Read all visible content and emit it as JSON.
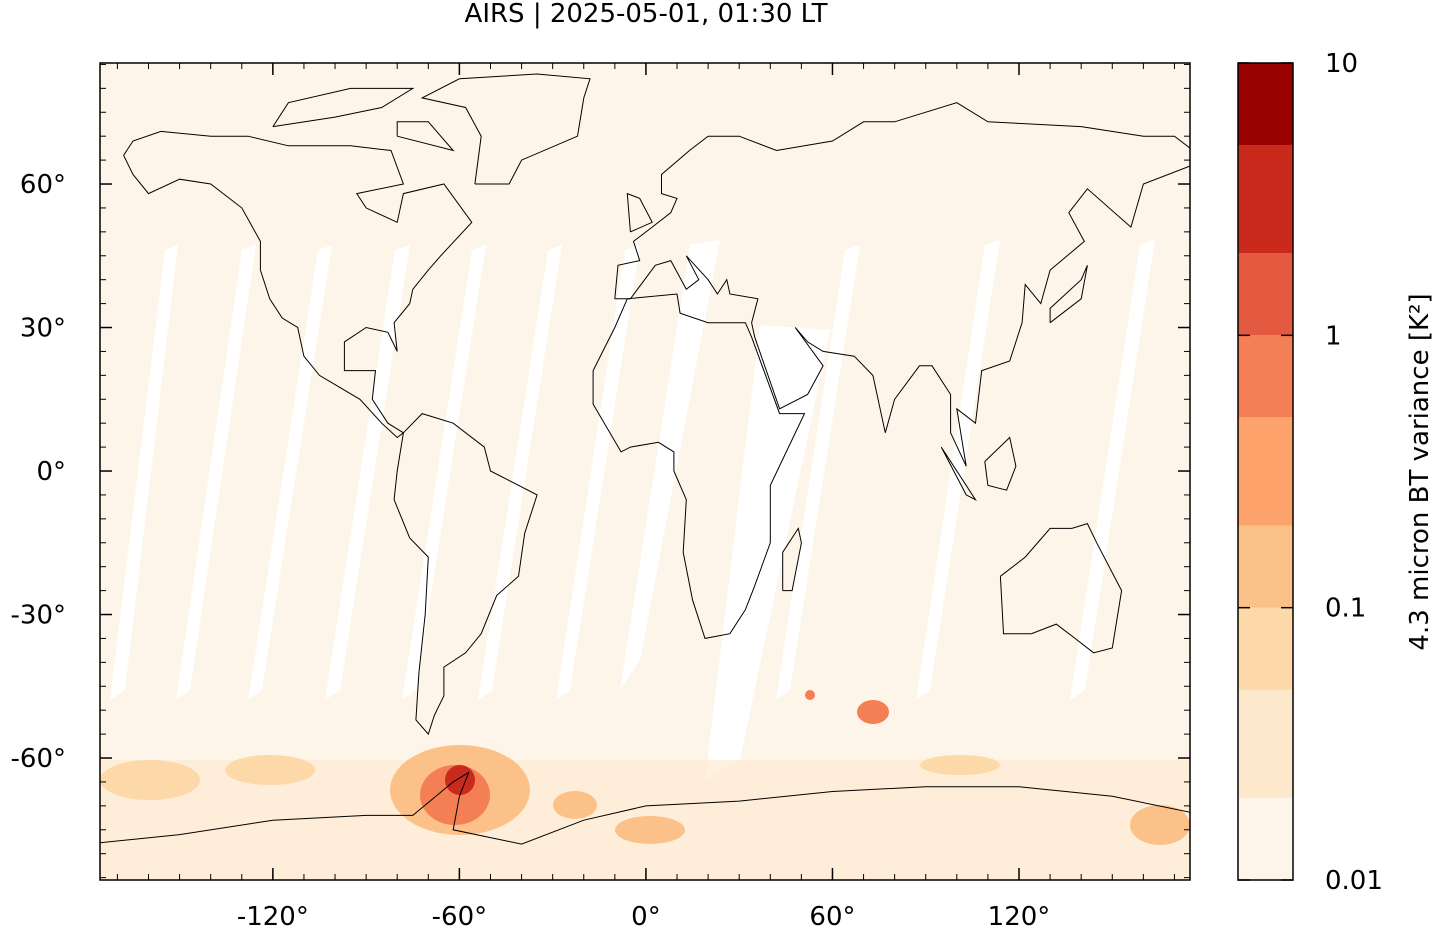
{
  "chart_data": {
    "type": "map",
    "title": "AIRS | 2025-05-01, 01:30 LT",
    "xlim": [
      -175.6,
      175.0
    ],
    "ylim": [
      -85.5,
      85.3
    ],
    "xticks": [
      {
        "value": -120,
        "label": "-120°"
      },
      {
        "value": -60,
        "label": "-60°"
      },
      {
        "value": 0,
        "label": "0°"
      },
      {
        "value": 60,
        "label": "60°"
      },
      {
        "value": 120,
        "label": "120°"
      }
    ],
    "yticks": [
      {
        "value": -60,
        "label": "-60°"
      },
      {
        "value": -30,
        "label": "-30°"
      },
      {
        "value": 0,
        "label": "0°"
      },
      {
        "value": 30,
        "label": "30°"
      },
      {
        "value": 60,
        "label": "60°"
      }
    ],
    "xminor_step": 10,
    "yminor_step": 5,
    "colorbar": {
      "label": "4.3 micron BT variance [K²]",
      "log": true,
      "levels": [
        0.01,
        0.02,
        0.05,
        0.1,
        0.2,
        0.5,
        1,
        2,
        5,
        10
      ],
      "colors": [
        "#fef5ea",
        "#fde8cc",
        "#fdd8a8",
        "#fcc189",
        "#fca26a",
        "#f47f55",
        "#e35a40",
        "#c92a1c",
        "#990000"
      ],
      "ticks": [
        0.01,
        0.1,
        1,
        10
      ]
    }
  }
}
